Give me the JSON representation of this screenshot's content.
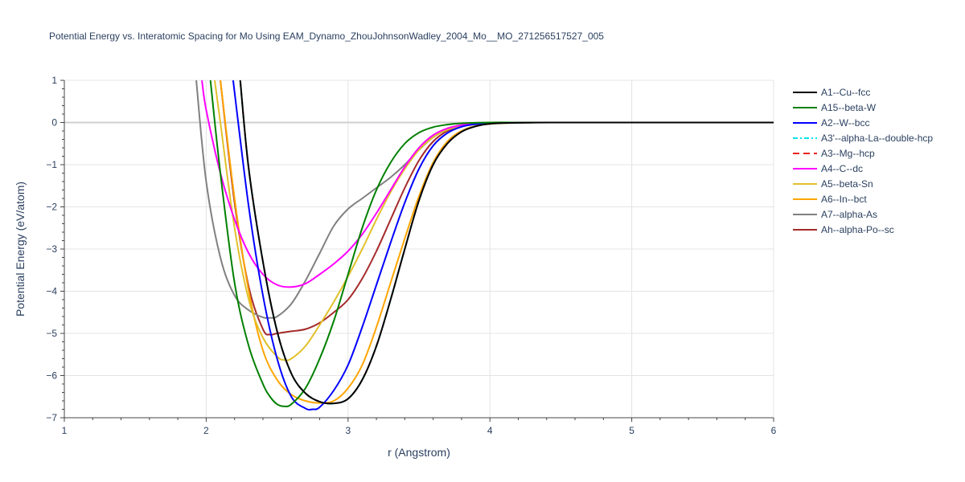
{
  "chart_data": {
    "type": "line",
    "title": "Potential Energy vs. Interatomic Spacing for Mo Using EAM_Dynamo_ZhouJohnsonWadley_2004_Mo__MO_271256517527_005",
    "xlabel": "r (Angstrom)",
    "ylabel": "Potential Energy (eV/atom)",
    "xlim": [
      1,
      6
    ],
    "ylim": [
      -7,
      1
    ],
    "xticks": [
      "1",
      "2",
      "3",
      "4",
      "5",
      "6"
    ],
    "yticks": [
      "1",
      "0",
      "−1",
      "−2",
      "−3",
      "−4",
      "−5",
      "−6",
      "−7"
    ],
    "grid": true,
    "legend_position": "right",
    "series": [
      {
        "name": "A1--Cu--fcc",
        "color": "#000000",
        "dash": "solid",
        "x": [
          2.24,
          2.3,
          2.4,
          2.5,
          2.6,
          2.7,
          2.8,
          2.9,
          3.0,
          3.1,
          3.2,
          3.3,
          3.4,
          3.5,
          3.6,
          3.7,
          3.8,
          3.9,
          4.0,
          4.2,
          4.5,
          5.0,
          6.0
        ],
        "y": [
          1.0,
          -1.1,
          -3.3,
          -4.95,
          -5.95,
          -6.42,
          -6.62,
          -6.66,
          -6.55,
          -6.1,
          -5.3,
          -4.2,
          -3.0,
          -1.85,
          -1.0,
          -0.5,
          -0.22,
          -0.09,
          -0.03,
          -0.005,
          0,
          0,
          0
        ]
      },
      {
        "name": "A15--beta-W",
        "color": "#008000",
        "dash": "solid",
        "x": [
          2.03,
          2.1,
          2.2,
          2.3,
          2.4,
          2.45,
          2.5,
          2.55,
          2.6,
          2.7,
          2.8,
          2.9,
          3.0,
          3.1,
          3.2,
          3.3,
          3.4,
          3.5,
          3.6,
          3.7,
          3.8,
          4.0,
          4.3,
          5.0,
          6.0
        ],
        "y": [
          1.0,
          -1.2,
          -3.8,
          -5.3,
          -6.2,
          -6.5,
          -6.68,
          -6.73,
          -6.68,
          -6.3,
          -5.6,
          -4.7,
          -3.6,
          -2.5,
          -1.6,
          -0.95,
          -0.5,
          -0.24,
          -0.11,
          -0.05,
          -0.02,
          0,
          0,
          0,
          0
        ]
      },
      {
        "name": "A2--W--bcc",
        "color": "#0000ff",
        "dash": "solid",
        "x": [
          2.19,
          2.3,
          2.4,
          2.5,
          2.6,
          2.7,
          2.75,
          2.8,
          2.9,
          3.0,
          3.1,
          3.2,
          3.3,
          3.4,
          3.5,
          3.6,
          3.7,
          3.8,
          3.9,
          4.0,
          4.3,
          5.0,
          6.0
        ],
        "y": [
          1.0,
          -2.0,
          -4.1,
          -5.6,
          -6.5,
          -6.78,
          -6.8,
          -6.75,
          -6.35,
          -5.75,
          -4.85,
          -3.85,
          -2.85,
          -1.9,
          -1.1,
          -0.55,
          -0.25,
          -0.1,
          -0.04,
          -0.01,
          0,
          0,
          0
        ]
      },
      {
        "name": "A3'--alpha-La--double-hcp",
        "color": "#00e5ee",
        "dash": "6,3,2,3",
        "x": [
          2.24,
          2.3,
          2.4,
          2.5,
          2.6,
          2.7,
          2.8,
          2.9,
          3.0,
          3.1,
          3.2,
          3.3,
          3.4,
          3.5,
          3.6,
          3.7,
          3.8,
          3.9,
          4.0,
          4.2,
          4.5,
          5.0,
          6.0
        ],
        "y": [
          1.0,
          -1.1,
          -3.3,
          -4.95,
          -5.95,
          -6.42,
          -6.62,
          -6.66,
          -6.55,
          -6.1,
          -5.3,
          -4.2,
          -3.0,
          -1.85,
          -1.0,
          -0.5,
          -0.22,
          -0.09,
          -0.03,
          -0.005,
          0,
          0,
          0
        ]
      },
      {
        "name": "A3--Mg--hcp",
        "color": "#e8221e",
        "dash": "8,5",
        "x": [
          2.24,
          2.3,
          2.4,
          2.5,
          2.6,
          2.7,
          2.8,
          2.9,
          3.0,
          3.1,
          3.2,
          3.3,
          3.4,
          3.5,
          3.6,
          3.7,
          3.8,
          3.9,
          4.0,
          4.2,
          4.5,
          5.0,
          6.0
        ],
        "y": [
          1.0,
          -1.1,
          -3.3,
          -4.95,
          -5.95,
          -6.42,
          -6.62,
          -6.66,
          -6.55,
          -6.1,
          -5.3,
          -4.2,
          -3.0,
          -1.85,
          -1.0,
          -0.5,
          -0.22,
          -0.09,
          -0.03,
          -0.005,
          0,
          0,
          0
        ]
      },
      {
        "name": "A4--C--dc",
        "color": "#ff00ff",
        "dash": "solid",
        "x": [
          1.97,
          2.0,
          2.1,
          2.2,
          2.3,
          2.4,
          2.5,
          2.6,
          2.7,
          2.8,
          2.9,
          3.0,
          3.1,
          3.2,
          3.3,
          3.4,
          3.5,
          3.6,
          3.7,
          3.8,
          3.9,
          4.0,
          4.3,
          5.0,
          6.0
        ],
        "y": [
          1.0,
          0.3,
          -1.2,
          -2.3,
          -3.1,
          -3.6,
          -3.85,
          -3.9,
          -3.82,
          -3.6,
          -3.35,
          -3.05,
          -2.65,
          -2.15,
          -1.6,
          -1.05,
          -0.6,
          -0.3,
          -0.14,
          -0.06,
          -0.02,
          -0.01,
          0,
          0,
          0
        ]
      },
      {
        "name": "A5--beta-Sn",
        "color": "#e1c12c",
        "dash": "solid",
        "x": [
          2.06,
          2.1,
          2.2,
          2.3,
          2.4,
          2.5,
          2.55,
          2.6,
          2.7,
          2.8,
          2.9,
          3.0,
          3.1,
          3.2,
          3.3,
          3.4,
          3.5,
          3.6,
          3.7,
          3.8,
          3.9,
          4.0,
          4.3,
          5.0,
          6.0
        ],
        "y": [
          1.0,
          0.0,
          -2.5,
          -4.2,
          -5.1,
          -5.55,
          -5.63,
          -5.6,
          -5.3,
          -4.8,
          -4.25,
          -3.65,
          -3.0,
          -2.3,
          -1.65,
          -1.1,
          -0.65,
          -0.35,
          -0.17,
          -0.08,
          -0.03,
          -0.01,
          0,
          0,
          0
        ]
      },
      {
        "name": "A6--In--bct",
        "color": "#ffa500",
        "dash": "solid",
        "x": [
          2.1,
          2.2,
          2.3,
          2.4,
          2.5,
          2.6,
          2.7,
          2.8,
          2.9,
          3.0,
          3.1,
          3.2,
          3.3,
          3.4,
          3.5,
          3.6,
          3.7,
          3.8,
          3.9,
          4.0,
          4.3,
          5.0,
          6.0
        ],
        "y": [
          1.0,
          -1.8,
          -4.0,
          -5.4,
          -6.1,
          -6.45,
          -6.6,
          -6.65,
          -6.6,
          -6.3,
          -5.75,
          -4.85,
          -3.8,
          -2.75,
          -1.75,
          -0.95,
          -0.45,
          -0.2,
          -0.08,
          -0.03,
          0,
          0,
          0
        ]
      },
      {
        "name": "A7--alpha-As",
        "color": "#808080",
        "dash": "solid",
        "x": [
          1.93,
          2.0,
          2.1,
          2.2,
          2.3,
          2.4,
          2.45,
          2.5,
          2.6,
          2.7,
          2.8,
          2.9,
          3.0,
          3.1,
          3.2,
          3.3,
          3.4,
          3.5,
          3.6,
          3.7,
          3.8,
          3.9,
          4.0,
          4.3,
          5.0,
          6.0
        ],
        "y": [
          1.0,
          -1.4,
          -3.2,
          -4.1,
          -4.45,
          -4.62,
          -4.63,
          -4.6,
          -4.3,
          -3.75,
          -3.1,
          -2.45,
          -2.05,
          -1.8,
          -1.55,
          -1.3,
          -1.0,
          -0.65,
          -0.35,
          -0.17,
          -0.08,
          -0.03,
          -0.01,
          0,
          0,
          0
        ]
      },
      {
        "name": "Ah--alpha-Po--sc",
        "color": "#a52a2a",
        "dash": "solid",
        "x": [
          2.1,
          2.2,
          2.3,
          2.4,
          2.45,
          2.5,
          2.6,
          2.7,
          2.8,
          2.9,
          3.0,
          3.1,
          3.2,
          3.3,
          3.4,
          3.5,
          3.6,
          3.7,
          3.8,
          3.9,
          4.0,
          4.3,
          5.0,
          6.0
        ],
        "y": [
          1.0,
          -1.9,
          -3.9,
          -4.9,
          -5.03,
          -5.0,
          -4.95,
          -4.9,
          -4.75,
          -4.5,
          -4.2,
          -3.7,
          -3.05,
          -2.3,
          -1.55,
          -0.9,
          -0.45,
          -0.2,
          -0.08,
          -0.03,
          -0.01,
          0,
          0,
          0
        ]
      }
    ]
  }
}
